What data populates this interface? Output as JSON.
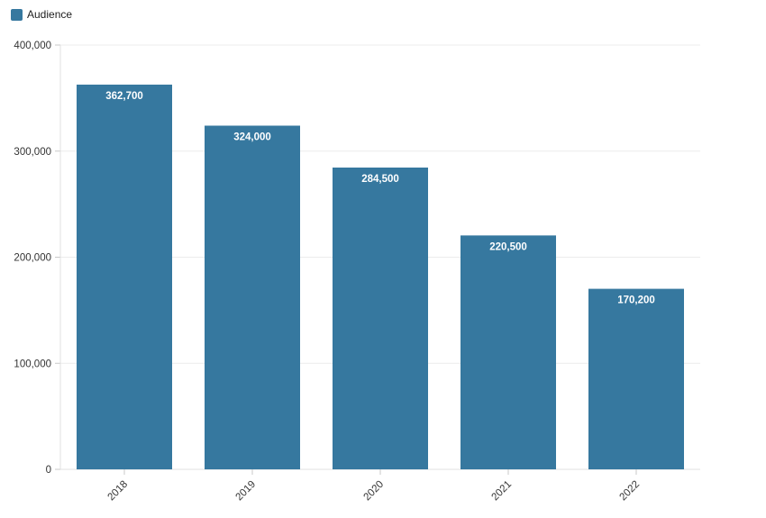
{
  "legend": {
    "label": "Audience",
    "color": "#36789F"
  },
  "chart_data": {
    "type": "bar",
    "title": "",
    "xlabel": "",
    "ylabel": "",
    "categories": [
      "2018",
      "2019",
      "2020",
      "2021",
      "2022"
    ],
    "series": [
      {
        "name": "Audience",
        "values": [
          362700,
          324000,
          284500,
          220500,
          170200
        ]
      }
    ],
    "value_labels": [
      "362,700",
      "324,000",
      "284,500",
      "220,500",
      "170,200"
    ],
    "ylim": [
      0,
      400000
    ],
    "ytick_interval": 100000,
    "ytick_labels": [
      "0",
      "100,000",
      "200,000",
      "300,000",
      "400,000"
    ],
    "grid": true,
    "legend_position": "top-left",
    "x_label_rotation_deg": 45
  },
  "colors": {
    "bar": "#36789F",
    "bar_value_label": "#ffffff",
    "gridline": "#ececec",
    "axis_line": "#e0e0e0",
    "tick": "#c9c9c9",
    "axis_text": "#333333",
    "background": "#ffffff"
  }
}
